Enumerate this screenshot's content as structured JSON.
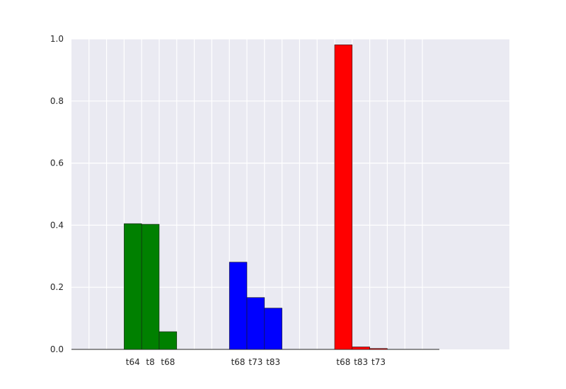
{
  "chart_data": {
    "type": "bar",
    "title": "",
    "xlabel": "",
    "ylabel": "",
    "ylim": [
      0,
      1.0
    ],
    "yticks": [
      "0.0",
      "0.2",
      "0.4",
      "0.6",
      "0.8",
      "1.0"
    ],
    "grid": true,
    "groups": [
      {
        "color": "#008000",
        "bars": [
          {
            "label": "t64",
            "value": 0.405
          },
          {
            "label": "t8",
            "value": 0.403
          },
          {
            "label": "t68",
            "value": 0.057
          }
        ]
      },
      {
        "color": "#0000ff",
        "bars": [
          {
            "label": "t68",
            "value": 0.281
          },
          {
            "label": "t73",
            "value": 0.167
          },
          {
            "label": "t83",
            "value": 0.133
          }
        ]
      },
      {
        "color": "#ff0000",
        "bars": [
          {
            "label": "t68",
            "value": 0.981
          },
          {
            "label": "t83",
            "value": 0.008
          },
          {
            "label": "t73",
            "value": 0.003
          }
        ]
      }
    ]
  }
}
